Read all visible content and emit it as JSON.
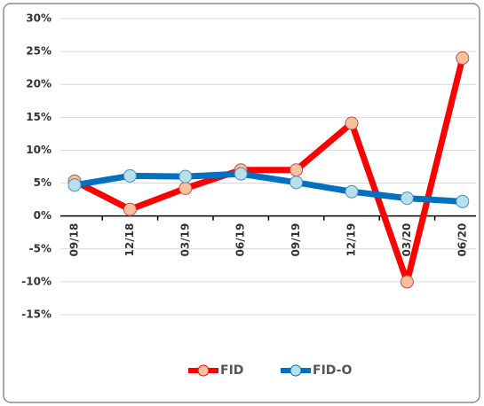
{
  "chart_data": {
    "type": "line",
    "categories": [
      "09/18",
      "12/18",
      "03/19",
      "06/19",
      "09/19",
      "12/19",
      "03/20",
      "06/20"
    ],
    "series": [
      {
        "name": "FID",
        "color": "#ff0000",
        "marker_color": "#f8c09c",
        "values": [
          5.3,
          1.0,
          4.2,
          7.0,
          7.0,
          14.1,
          -10.0,
          24.0
        ]
      },
      {
        "name": "FID-O",
        "color": "#0070c0",
        "marker_color": "#b7dfec",
        "values": [
          4.7,
          6.1,
          6.0,
          6.4,
          5.1,
          3.7,
          2.7,
          2.2
        ]
      }
    ],
    "ylim": [
      -15,
      30
    ],
    "yticks": [
      {
        "value": -15,
        "label": "-15%"
      },
      {
        "value": -10,
        "label": "-10%"
      },
      {
        "value": -5,
        "label": "-5%"
      },
      {
        "value": 0,
        "label": "0%"
      },
      {
        "value": 5,
        "label": "5%"
      },
      {
        "value": 10,
        "label": "10%"
      },
      {
        "value": 15,
        "label": "15%"
      },
      {
        "value": 20,
        "label": "20%"
      },
      {
        "value": 25,
        "label": "25%"
      },
      {
        "value": 30,
        "label": "30%"
      }
    ],
    "grid": true
  }
}
